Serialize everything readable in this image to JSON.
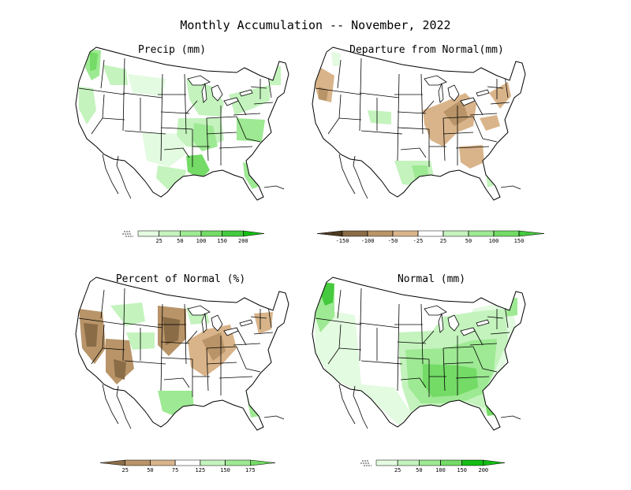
{
  "title": "Monthly Accumulation -- November, 2022",
  "colors": {
    "g1": "#e3fbe0",
    "g2": "#c4f3bd",
    "g3": "#9ee993",
    "g4": "#73db66",
    "g5": "#45c93e",
    "g6": "#13be13",
    "b1": "#d9b48a",
    "b2": "#b89468",
    "b3": "#8a6c47",
    "b4": "#4d3a22",
    "water": "#ffffff",
    "line": "#000000"
  },
  "panels": [
    {
      "title": "Precip (mm)",
      "scale": "precip",
      "colorbar": {
        "labels": [
          "25",
          "50",
          "100",
          "150",
          "200"
        ],
        "swatches": [
          "g1",
          "g2",
          "g3",
          "g4",
          "g5",
          "g6"
        ],
        "open_low": true
      }
    },
    {
      "title": "Departure from Normal(mm)",
      "scale": "departure",
      "colorbar": {
        "labels": [
          "-150",
          "-100",
          "-50",
          "-25",
          "25",
          "50",
          "100",
          "150"
        ],
        "swatches": [
          "b4",
          "b3",
          "b2",
          "b1",
          "water",
          "g2",
          "g3",
          "g4",
          "g5"
        ],
        "open_low": false
      }
    },
    {
      "title": "Percent of Normal (%)",
      "scale": "percent",
      "colorbar": {
        "labels": [
          "25",
          "50",
          "75",
          "125",
          "150",
          "175"
        ],
        "swatches": [
          "b3",
          "b2",
          "b1",
          "water",
          "g2",
          "g3",
          "g4"
        ],
        "open_low": false
      }
    },
    {
      "title": "Normal (mm)",
      "scale": "precip",
      "colorbar": {
        "labels": [
          "25",
          "50",
          "100",
          "150",
          "200"
        ],
        "swatches": [
          "g1",
          "g2",
          "g3",
          "g4",
          "g6",
          "g6"
        ],
        "open_low": true
      }
    }
  ]
}
